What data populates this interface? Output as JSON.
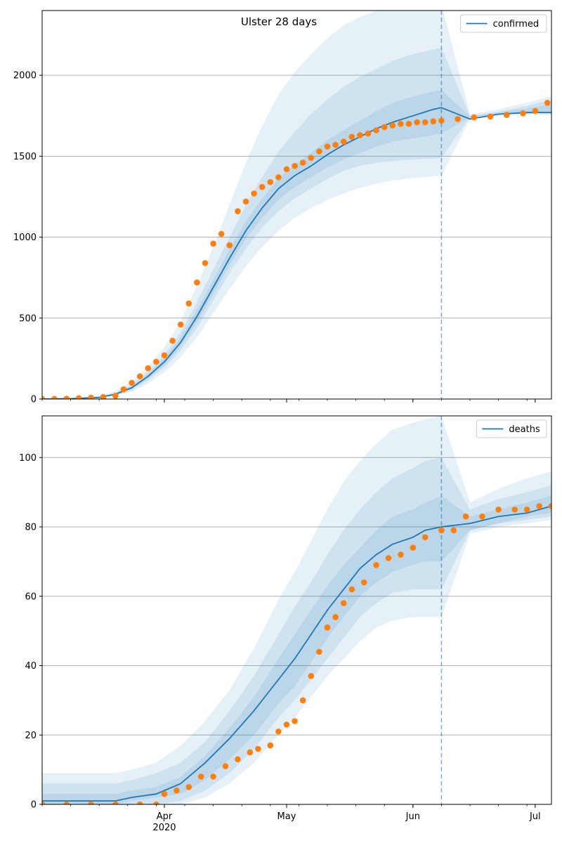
{
  "title": "Ulster 28 days",
  "colors": {
    "model": "#1f77b4",
    "observed": "#ff7f0e",
    "band": "#1f77b4",
    "grid": "#b0b0b0",
    "forecast_line": "#1f77b4"
  },
  "x_axis": {
    "start": "2020-03-02",
    "end": "2020-07-05",
    "forecast_start": "2020-06-08",
    "major_ticks": [
      {
        "date": "2020-04-01",
        "label": "Apr",
        "sublabel": "2020"
      },
      {
        "date": "2020-05-01",
        "label": "May",
        "sublabel": ""
      },
      {
        "date": "2020-06-01",
        "label": "Jun",
        "sublabel": ""
      },
      {
        "date": "2020-07-01",
        "label": "Jul",
        "sublabel": ""
      }
    ]
  },
  "chart_data": [
    {
      "type": "line",
      "legend": "confirmed",
      "legend_position": "top-right",
      "grid": "y",
      "ylim": [
        0,
        2400
      ],
      "yticks": [
        0,
        500,
        1000,
        1500,
        2000
      ],
      "model": {
        "dates": [
          "2020-03-02",
          "2020-03-09",
          "2020-03-16",
          "2020-03-20",
          "2020-03-24",
          "2020-03-28",
          "2020-04-01",
          "2020-04-05",
          "2020-04-09",
          "2020-04-13",
          "2020-04-17",
          "2020-04-21",
          "2020-04-25",
          "2020-04-29",
          "2020-05-03",
          "2020-05-07",
          "2020-05-11",
          "2020-05-15",
          "2020-05-19",
          "2020-05-23",
          "2020-05-27",
          "2020-06-01",
          "2020-06-06",
          "2020-06-08",
          "2020-06-15",
          "2020-06-22",
          "2020-06-29",
          "2020-07-05"
        ],
        "values": [
          0,
          2,
          10,
          30,
          70,
          140,
          230,
          350,
          510,
          690,
          870,
          1040,
          1180,
          1300,
          1380,
          1440,
          1510,
          1570,
          1620,
          1670,
          1710,
          1750,
          1790,
          1800,
          1730,
          1760,
          1770,
          1770
        ],
        "bands": [
          {
            "lower": [
              0,
              0,
              6,
              20,
              45,
              95,
              165,
              260,
              380,
              530,
              680,
              820,
              940,
              1040,
              1120,
              1180,
              1230,
              1270,
              1305,
              1330,
              1350,
              1365,
              1375,
              1380,
              1730,
              1750,
              1755,
              1755
            ],
            "upper": [
              0,
              5,
              16,
              50,
              110,
              200,
              320,
              480,
              700,
              940,
              1200,
              1460,
              1690,
              1880,
              2020,
              2130,
              2230,
              2310,
              2360,
              2400,
              2430,
              2440,
              2440,
              2440,
              1760,
              1790,
              1830,
              1870
            ]
          },
          {
            "lower": [
              0,
              1,
              8,
              24,
              55,
              115,
              195,
              300,
              440,
              610,
              780,
              930,
              1060,
              1160,
              1240,
              1300,
              1360,
              1410,
              1440,
              1460,
              1470,
              1480,
              1485,
              1490,
              1740,
              1760,
              1765,
              1765
            ],
            "upper": [
              0,
              3,
              13,
              40,
              90,
              170,
              275,
              410,
              600,
              800,
              1000,
              1200,
              1370,
              1530,
              1650,
              1760,
              1850,
              1930,
              1990,
              2040,
              2090,
              2130,
              2160,
              2170,
              1750,
              1775,
              1810,
              1850
            ]
          },
          {
            "lower": [
              0,
              1,
              9,
              27,
              62,
              127,
              210,
              325,
              475,
              650,
              830,
              990,
              1120,
              1230,
              1310,
              1370,
              1430,
              1480,
              1520,
              1560,
              1590,
              1610,
              1630,
              1640,
              1740,
              1765,
              1770,
              1770
            ],
            "upper": [
              0,
              2,
              11,
              34,
              78,
              155,
              252,
              380,
              550,
              735,
              925,
              1095,
              1240,
              1360,
              1450,
              1520,
              1600,
              1660,
              1720,
              1780,
              1830,
              1870,
              1900,
              1910,
              1745,
              1770,
              1795,
              1820
            ]
          }
        ]
      },
      "observed": {
        "dates": [
          "2020-03-02",
          "2020-03-05",
          "2020-03-08",
          "2020-03-11",
          "2020-03-14",
          "2020-03-17",
          "2020-03-20",
          "2020-03-22",
          "2020-03-24",
          "2020-03-26",
          "2020-03-28",
          "2020-03-30",
          "2020-04-01",
          "2020-04-03",
          "2020-04-05",
          "2020-04-07",
          "2020-04-09",
          "2020-04-11",
          "2020-04-13",
          "2020-04-15",
          "2020-04-17",
          "2020-04-19",
          "2020-04-21",
          "2020-04-23",
          "2020-04-25",
          "2020-04-27",
          "2020-04-29",
          "2020-05-01",
          "2020-05-03",
          "2020-05-05",
          "2020-05-07",
          "2020-05-09",
          "2020-05-11",
          "2020-05-13",
          "2020-05-15",
          "2020-05-17",
          "2020-05-19",
          "2020-05-21",
          "2020-05-23",
          "2020-05-25",
          "2020-05-27",
          "2020-05-29",
          "2020-05-31",
          "2020-06-02",
          "2020-06-04",
          "2020-06-06",
          "2020-06-08",
          "2020-06-12",
          "2020-06-16",
          "2020-06-20",
          "2020-06-24",
          "2020-06-28",
          "2020-07-01",
          "2020-07-04"
        ],
        "values": [
          0,
          1,
          2,
          5,
          8,
          12,
          20,
          60,
          100,
          140,
          190,
          230,
          270,
          360,
          460,
          590,
          720,
          840,
          960,
          1020,
          950,
          1160,
          1220,
          1270,
          1310,
          1340,
          1370,
          1420,
          1440,
          1460,
          1490,
          1530,
          1560,
          1570,
          1590,
          1620,
          1630,
          1640,
          1660,
          1680,
          1690,
          1700,
          1700,
          1710,
          1710,
          1715,
          1720,
          1730,
          1740,
          1745,
          1755,
          1765,
          1780,
          1830
        ]
      }
    },
    {
      "type": "line",
      "legend": "deaths",
      "legend_position": "top-right",
      "grid": "y",
      "ylim": [
        0,
        112
      ],
      "yticks": [
        0,
        20,
        40,
        60,
        80,
        100
      ],
      "model": {
        "dates": [
          "2020-03-02",
          "2020-03-20",
          "2020-03-24",
          "2020-03-30",
          "2020-04-05",
          "2020-04-11",
          "2020-04-17",
          "2020-04-23",
          "2020-04-29",
          "2020-05-03",
          "2020-05-07",
          "2020-05-11",
          "2020-05-15",
          "2020-05-19",
          "2020-05-23",
          "2020-05-27",
          "2020-06-01",
          "2020-06-04",
          "2020-06-08",
          "2020-06-15",
          "2020-06-22",
          "2020-06-29",
          "2020-07-05"
        ],
        "values": [
          1,
          1,
          2,
          3,
          6,
          12,
          19,
          27,
          36,
          42,
          49,
          56,
          62,
          68,
          72,
          75,
          77,
          79,
          80,
          81,
          83,
          84,
          86
        ],
        "bands": [
          {
            "lower": [
              0,
              0,
              0,
              0,
              0,
              2,
              6,
              12,
              20,
              25,
              31,
              37,
              42,
              47,
              51,
              53,
              54,
              54,
              54,
              78,
              80,
              81,
              82
            ],
            "upper": [
              9,
              9,
              10,
              12,
              17,
              24,
              33,
              45,
              59,
              67,
              76,
              85,
              93,
              99,
              104,
              108,
              110,
              111,
              112,
              87,
              91,
              94,
              96
            ]
          },
          {
            "lower": [
              0,
              0,
              0,
              0,
              1,
              4,
              9,
              16,
              25,
              30,
              36,
              42,
              48,
              54,
              58,
              61,
              62,
              62,
              62,
              79,
              81,
              82,
              83
            ],
            "upper": [
              6,
              6,
              7,
              9,
              12,
              18,
              27,
              37,
              49,
              57,
              64,
              72,
              79,
              85,
              90,
              94,
              97,
              99,
              100,
              85,
              88,
              90,
              92
            ]
          },
          {
            "lower": [
              0,
              0,
              1,
              2,
              3,
              7,
              13,
              20,
              29,
              34,
              41,
              48,
              54,
              60,
              64,
              67,
              69,
              70,
              70,
              79,
              81,
              83,
              84
            ],
            "upper": [
              3,
              3,
              4,
              5,
              8,
              14,
              22,
              31,
              42,
              49,
              56,
              63,
              69,
              74,
              79,
              83,
              85,
              87,
              89,
              83,
              85,
              87,
              89
            ]
          }
        ]
      },
      "observed": {
        "dates": [
          "2020-03-02",
          "2020-03-08",
          "2020-03-14",
          "2020-03-20",
          "2020-03-26",
          "2020-03-30",
          "2020-04-01",
          "2020-04-04",
          "2020-04-07",
          "2020-04-10",
          "2020-04-13",
          "2020-04-16",
          "2020-04-19",
          "2020-04-22",
          "2020-04-24",
          "2020-04-27",
          "2020-04-29",
          "2020-05-01",
          "2020-05-03",
          "2020-05-05",
          "2020-05-07",
          "2020-05-09",
          "2020-05-11",
          "2020-05-13",
          "2020-05-15",
          "2020-05-17",
          "2020-05-20",
          "2020-05-23",
          "2020-05-26",
          "2020-05-29",
          "2020-06-01",
          "2020-06-04",
          "2020-06-08",
          "2020-06-11",
          "2020-06-14",
          "2020-06-18",
          "2020-06-22",
          "2020-06-26",
          "2020-06-29",
          "2020-07-02",
          "2020-07-05"
        ],
        "values": [
          0,
          0,
          0,
          0,
          0,
          0,
          3,
          4,
          5,
          8,
          8,
          11,
          13,
          15,
          16,
          17,
          21,
          23,
          24,
          30,
          37,
          44,
          51,
          54,
          58,
          62,
          64,
          69,
          71,
          72,
          74,
          77,
          79,
          79,
          83,
          83,
          85,
          85,
          85,
          86,
          86
        ]
      }
    }
  ]
}
